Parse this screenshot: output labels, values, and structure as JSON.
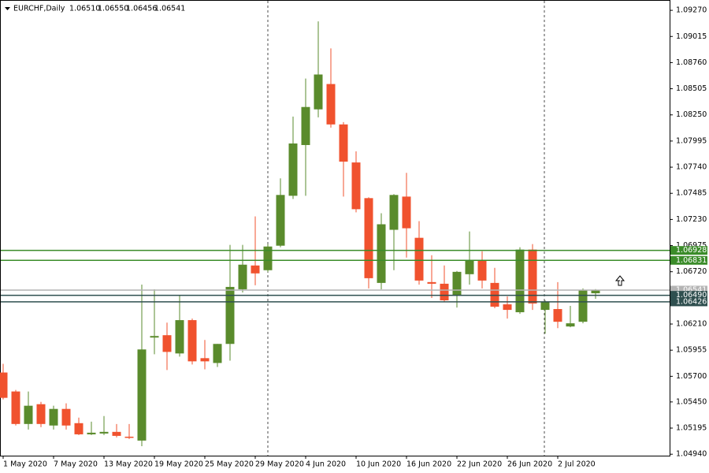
{
  "header": {
    "symbol": "EURCHF,Daily",
    "ohlc": [
      "1.06510",
      "1.06550",
      "1.06456",
      "1.06541"
    ]
  },
  "chart_data": {
    "type": "candlestick",
    "categories": [
      "1 May 2020",
      null,
      null,
      null,
      "7 May 2020",
      null,
      null,
      null,
      "13 May 2020",
      null,
      null,
      null,
      "19 May 2020",
      null,
      null,
      null,
      "25 May 2020",
      null,
      null,
      null,
      "29 May 2020",
      null,
      null,
      null,
      "4 Jun 2020",
      null,
      null,
      null,
      "10 Jun 2020",
      null,
      null,
      null,
      "16 Jun 2020",
      null,
      null,
      null,
      "22 Jun 2020",
      null,
      null,
      null,
      "26 Jun 2020",
      null,
      null,
      null,
      "2 Jul 2020",
      null,
      null,
      null
    ],
    "open": [
      1.05737,
      1.05552,
      1.05235,
      1.05428,
      1.0522,
      1.05382,
      1.05243,
      1.05134,
      1.05142,
      1.05158,
      1.05111,
      1.05073,
      1.06078,
      1.06101,
      1.05923,
      1.06248,
      1.05877,
      1.0583,
      1.06016,
      1.06549,
      1.06781,
      1.06735,
      1.06974,
      1.07461,
      1.07956,
      1.08304,
      1.08551,
      1.08157,
      1.07786,
      1.07438,
      1.06611,
      1.07129,
      1.07453,
      1.07051,
      1.06619,
      1.06603,
      1.06487,
      1.06696,
      1.06827,
      1.06611,
      1.06402,
      1.06325,
      1.06936,
      1.06348,
      1.06356,
      1.06186,
      1.06232,
      1.0651
    ],
    "high": [
      1.05822,
      1.05567,
      1.05552,
      1.05451,
      1.05413,
      1.05436,
      1.05297,
      1.05258,
      1.05312,
      1.05235,
      1.05235,
      1.06595,
      1.06549,
      1.06224,
      1.06495,
      1.06263,
      1.06054,
      1.06016,
      1.06982,
      1.06982,
      1.0726,
      1.0699,
      1.07631,
      1.08234,
      1.08605,
      1.09162,
      1.08899,
      1.0818,
      1.07894,
      1.07446,
      1.07291,
      1.07477,
      1.07685,
      1.07214,
      1.06881,
      1.06781,
      1.06727,
      1.07113,
      1.0692,
      1.06758,
      1.06479,
      1.06959,
      1.0699,
      1.06441,
      1.06619,
      1.06387,
      1.06557,
      1.0655
    ],
    "low": [
      1.05475,
      1.0522,
      1.05181,
      1.05204,
      1.05181,
      1.05181,
      1.05127,
      1.05127,
      1.05127,
      1.05104,
      1.05088,
      1.05018,
      1.05915,
      1.05761,
      1.05892,
      1.05815,
      1.05768,
      1.05791,
      1.05853,
      1.06518,
      1.06588,
      1.06719,
      1.06959,
      1.0743,
      1.07461,
      1.08226,
      1.08126,
      1.07453,
      1.07299,
      1.06557,
      1.06549,
      1.06735,
      1.06858,
      1.06595,
      1.06464,
      1.06425,
      1.06371,
      1.06595,
      1.06557,
      1.06364,
      1.06263,
      1.06309,
      1.06348,
      1.06116,
      1.0617,
      1.06178,
      1.06217,
      1.06456
    ],
    "close": [
      1.0549,
      1.05235,
      1.05413,
      1.05235,
      1.05382,
      1.0522,
      1.05134,
      1.0515,
      1.05158,
      1.05119,
      1.05104,
      1.05962,
      1.06093,
      1.05938,
      1.06248,
      1.05846,
      1.05846,
      1.06016,
      1.06572,
      1.06789,
      1.06704,
      1.06966,
      1.07469,
      1.07971,
      1.08327,
      1.08644,
      1.08157,
      1.07794,
      1.0733,
      1.06657,
      1.07183,
      1.07469,
      1.07144,
      1.06634,
      1.06603,
      1.06441,
      1.06719,
      1.06835,
      1.06634,
      1.06379,
      1.06348,
      1.06936,
      1.0641,
      1.06425,
      1.06232,
      1.06217,
      1.06541,
      1.06541
    ],
    "up_color": "#5a8b2c",
    "down_color": "#f0522e",
    "ylim": [
      1.04926,
      1.09363
    ],
    "yticks": [
      {
        "value": 1.0927,
        "label": "1.09270"
      },
      1.09015,
      {
        "value": 1.0876,
        "label": "1.08760"
      },
      1.08505,
      {
        "value": 1.0825,
        "label": "1.08250"
      },
      1.07995,
      {
        "value": 1.0774,
        "label": "1.07740"
      },
      1.07485,
      {
        "value": 1.0723,
        "label": "1.07230"
      },
      1.06975,
      {
        "value": 1.0672,
        "label": "1.06720"
      },
      1.06465,
      {
        "value": 1.0621,
        "label": "1.06210"
      },
      1.05955,
      {
        "value": 1.057,
        "label": "1.05700"
      },
      {
        "value": 1.0545,
        "label": "1.05450"
      },
      1.05195,
      {
        "value": 1.0494,
        "label": "1.04940"
      }
    ],
    "levels": [
      {
        "value": 1.06928,
        "color": "#3b8c2a"
      },
      {
        "value": 1.06831,
        "color": "#3b8c2a"
      },
      {
        "value": 1.06541,
        "color": "#b4b4b4"
      },
      {
        "value": 1.0649,
        "label": "1.06490",
        "color": "#2f4f4f"
      },
      {
        "value": 1.06426,
        "color": "#2f4f4f"
      }
    ]
  }
}
